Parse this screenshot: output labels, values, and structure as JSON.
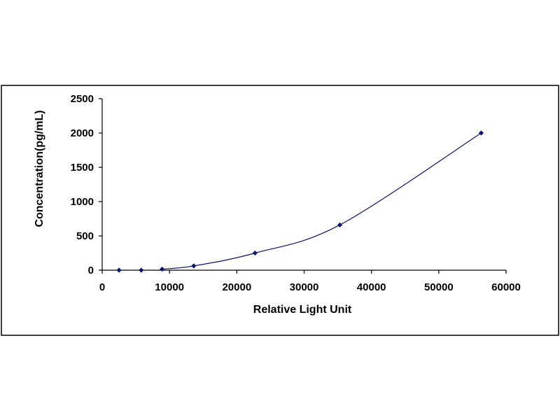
{
  "chart_data": {
    "type": "scatter",
    "title": "",
    "xlabel": "Relative Light Unit",
    "ylabel": "Concentration(pg/mL)",
    "xlim": [
      0,
      60000
    ],
    "ylim": [
      0,
      2500
    ],
    "x_ticks": [
      "0",
      "10000",
      "20000",
      "30000",
      "40000",
      "50000",
      "60000"
    ],
    "y_ticks": [
      "0",
      "500",
      "1000",
      "1500",
      "2000",
      "2500"
    ],
    "grid": false,
    "legend": "none",
    "series": [
      {
        "x": [
          2500,
          5800,
          8900,
          13600,
          22700,
          35300,
          56300
        ],
        "y": [
          0,
          0,
          15.6,
          62.5,
          250,
          660,
          2000
        ],
        "marker": "diamond",
        "fit_curve": true
      }
    ],
    "colors": {
      "series": "#0b1570",
      "frame": "#000000",
      "background": "#ffffff"
    }
  }
}
